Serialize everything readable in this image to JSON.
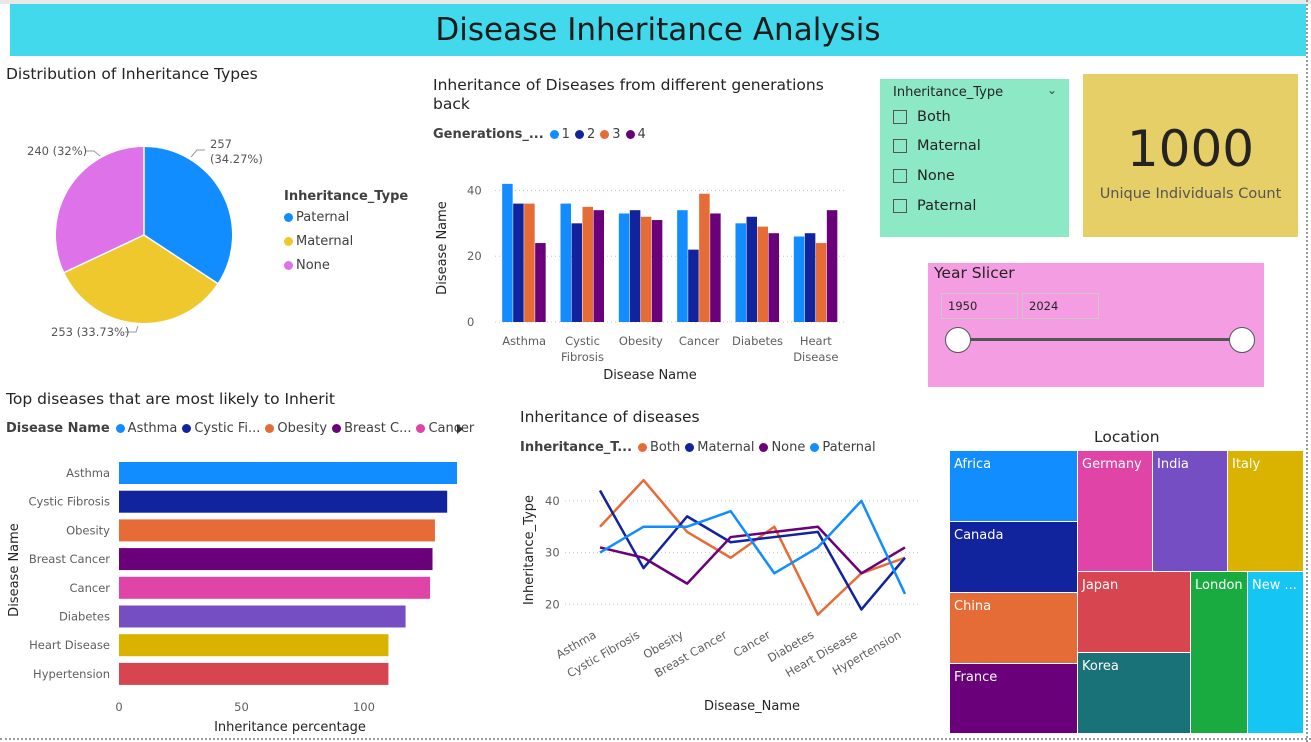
{
  "header": {
    "title": "Disease Inheritance Analysis"
  },
  "pie": {
    "title": "Distribution of Inheritance Types",
    "legend_title": "Inheritance_Type",
    "colors": {
      "Paternal": "#118dff",
      "Maternal": "#efc82e",
      "None": "#dd72e9"
    },
    "labels": {
      "paternal": "257",
      "paternal2": "(34.27%)",
      "none": "240 (32%)",
      "maternal": "253 (33.73%)"
    }
  },
  "gen_chart": {
    "title": "Inheritance of Diseases from different generations",
    "title2": "back",
    "legend_title": "Generations_...",
    "xlabel": "Disease Name",
    "ylabel": "Disease Name",
    "colors": [
      "#118dff",
      "#12239e",
      "#e66c37",
      "#6b007b"
    ]
  },
  "slicer": {
    "title": "Inheritance_Type",
    "options": [
      "Both",
      "Maternal",
      "None",
      "Paternal"
    ]
  },
  "card": {
    "value": "1000",
    "label": "Unique Individuals Count"
  },
  "year_slicer": {
    "title": "Year Slicer",
    "from": "1950",
    "to": "2024"
  },
  "top_chart": {
    "title": "Top diseases that are most likely to Inherit",
    "legend_title": "Disease Name",
    "xlabel": "Inheritance percentage",
    "ylabel": "Disease Name",
    "colors": [
      "#118dff",
      "#12239e",
      "#e66c37",
      "#6b007b",
      "#e044a7",
      "#744ec2",
      "#d9b300",
      "#d64550"
    ]
  },
  "line": {
    "title": "Inheritance of diseases",
    "legend_title": "Inheritance_T...",
    "xlabel": "Disease_Name",
    "ylabel": "Inheritance_Type",
    "colors": {
      "Both": "#e66c37",
      "Maternal": "#12239e",
      "None": "#6b007b",
      "Paternal": "#118dff"
    }
  },
  "treemap": {
    "title": "Location",
    "cells": [
      {
        "name": "Africa",
        "color": "#118dff"
      },
      {
        "name": "Canada",
        "color": "#12239e"
      },
      {
        "name": "China",
        "color": "#e66c37"
      },
      {
        "name": "France",
        "color": "#6b007b"
      },
      {
        "name": "Germany",
        "color": "#e044a7"
      },
      {
        "name": "India",
        "color": "#744ec2"
      },
      {
        "name": "Italy",
        "color": "#d9b300"
      },
      {
        "name": "Japan",
        "color": "#d64550"
      },
      {
        "name": "Korea",
        "color": "#197278"
      },
      {
        "name": "London",
        "color": "#1aab40"
      },
      {
        "name": "New ...",
        "color": "#15c6f4"
      }
    ]
  },
  "chart_data": [
    {
      "type": "pie",
      "title": "Distribution of Inheritance Types",
      "legend": {
        "title": "Inheritance_Type",
        "position": "right"
      },
      "slices": [
        {
          "name": "Paternal",
          "value": 257,
          "percent": 34.27
        },
        {
          "name": "Maternal",
          "value": 253,
          "percent": 33.73
        },
        {
          "name": "None",
          "value": 240,
          "percent": 32
        }
      ]
    },
    {
      "type": "bar",
      "title": "Inheritance of Diseases from different generations back",
      "xlabel": "Disease Name",
      "ylabel": "Disease Name",
      "ylim": [
        0,
        45
      ],
      "yticks": [
        0,
        20,
        40
      ],
      "legend": {
        "title": "Generations_...",
        "position": "top-left"
      },
      "categories": [
        "Asthma",
        "Cystic Fibrosis",
        "Obesity",
        "Cancer",
        "Diabetes",
        "Heart Disease"
      ],
      "category_lines": [
        [
          "Asthma"
        ],
        [
          "Cystic",
          "Fibrosis"
        ],
        [
          "Obesity"
        ],
        [
          "Cancer"
        ],
        [
          "Diabetes"
        ],
        [
          "Heart",
          "Disease"
        ]
      ],
      "series": [
        {
          "name": "1",
          "values": [
            42,
            36,
            33,
            34,
            30,
            26
          ]
        },
        {
          "name": "2",
          "values": [
            36,
            30,
            34,
            22,
            32,
            27
          ]
        },
        {
          "name": "3",
          "values": [
            36,
            35,
            32,
            39,
            29,
            24
          ]
        },
        {
          "name": "4",
          "values": [
            24,
            34,
            31,
            33,
            27,
            34
          ]
        }
      ]
    },
    {
      "type": "bar",
      "orientation": "horizontal",
      "title": "Top diseases that are most likely to Inherit",
      "xlabel": "Inheritance percentage",
      "ylabel": "Disease Name",
      "xlim": [
        0,
        138
      ],
      "xticks": [
        0,
        50,
        100
      ],
      "legend": {
        "title": "Disease Name",
        "position": "top-left",
        "entries": [
          "Asthma",
          "Cystic Fi...",
          "Obesity",
          "Breast C...",
          "Cancer"
        ]
      },
      "categories": [
        "Asthma",
        "Cystic Fibrosis",
        "Obesity",
        "Breast Cancer",
        "Cancer",
        "Diabetes",
        "Heart Disease",
        "Hypertension"
      ],
      "values": [
        138,
        134,
        129,
        128,
        127,
        117,
        110,
        110
      ]
    },
    {
      "type": "line",
      "title": "Inheritance of diseases",
      "xlabel": "Disease_Name",
      "ylabel": "Inheritance_Type",
      "ylim": [
        16,
        45
      ],
      "yticks": [
        20,
        30,
        40
      ],
      "legend": {
        "title": "Inheritance_T...",
        "position": "top-left"
      },
      "categories": [
        "Asthma",
        "Cystic Fibrosis",
        "Obesity",
        "Breast Cancer",
        "Cancer",
        "Diabetes",
        "Heart Disease",
        "Hypertension"
      ],
      "series": [
        {
          "name": "Both",
          "values": [
            35,
            44,
            34,
            29,
            35,
            18,
            26,
            29
          ]
        },
        {
          "name": "Maternal",
          "values": [
            42,
            27,
            37,
            32,
            33,
            34,
            19,
            29
          ]
        },
        {
          "name": "None",
          "values": [
            31,
            29,
            24,
            33,
            34,
            35,
            26,
            31
          ]
        },
        {
          "name": "Paternal",
          "values": [
            30,
            35,
            35,
            38,
            26,
            31,
            40,
            22
          ]
        }
      ]
    },
    {
      "type": "treemap",
      "title": "Location",
      "categories": [
        "Africa",
        "Canada",
        "China",
        "France",
        "Germany",
        "India",
        "Italy",
        "Japan",
        "Korea",
        "London",
        "New ..."
      ]
    }
  ]
}
